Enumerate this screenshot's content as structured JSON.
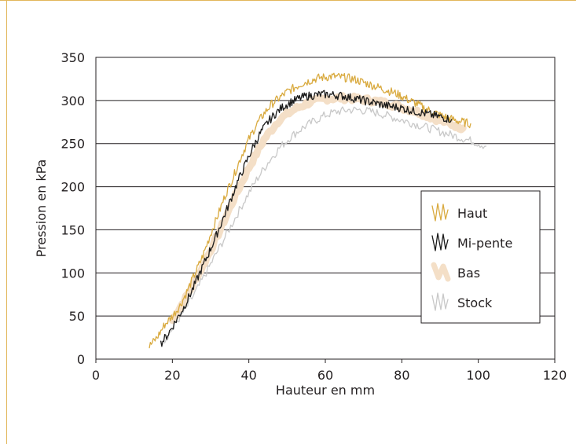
{
  "chart_data": {
    "type": "line",
    "title": "",
    "xlabel": "Hauteur en mm",
    "ylabel": "Pression en kPa",
    "xlim": [
      0,
      120
    ],
    "ylim": [
      0,
      350
    ],
    "xticks": [
      0,
      20,
      40,
      60,
      80,
      100,
      120
    ],
    "yticks": [
      0,
      50,
      100,
      150,
      200,
      250,
      300,
      350
    ],
    "grid": "horizontal",
    "legend_position": "right",
    "series": [
      {
        "name": "Haut",
        "color": "#d9aa3f",
        "x": [
          14,
          16,
          18,
          20,
          22,
          24,
          26,
          28,
          30,
          32,
          34,
          36,
          38,
          40,
          42,
          44,
          46,
          48,
          50,
          52,
          54,
          56,
          58,
          60,
          62,
          64,
          66,
          68,
          70,
          72,
          74,
          76,
          78,
          80,
          82,
          84,
          86,
          88,
          90,
          92,
          94,
          96,
          98
        ],
        "y": [
          15,
          25,
          40,
          50,
          62,
          80,
          100,
          120,
          145,
          168,
          192,
          212,
          235,
          255,
          272,
          285,
          296,
          303,
          310,
          315,
          320,
          323,
          326,
          327,
          328,
          327,
          326,
          324,
          321,
          318,
          315,
          312,
          309,
          305,
          300,
          296,
          291,
          287,
          283,
          280,
          277,
          275,
          273
        ]
      },
      {
        "name": "Mi-pente",
        "color": "#1a1a1a",
        "x": [
          17,
          19,
          21,
          23,
          25,
          27,
          29,
          31,
          33,
          35,
          37,
          39,
          41,
          43,
          45,
          47,
          49,
          51,
          53,
          55,
          57,
          59,
          61,
          63,
          65,
          67,
          69,
          71,
          73,
          75,
          77,
          79,
          81,
          83,
          85,
          87,
          89,
          91,
          93
        ],
        "y": [
          18,
          30,
          45,
          60,
          78,
          98,
          118,
          138,
          160,
          182,
          205,
          225,
          245,
          262,
          275,
          285,
          293,
          298,
          302,
          305,
          306,
          307,
          307,
          306,
          305,
          303,
          301,
          299,
          297,
          295,
          293,
          292,
          290,
          288,
          286,
          284,
          282,
          280,
          278
        ]
      },
      {
        "name": "Bas",
        "color": "#f4dfc7",
        "x": [
          20,
          24,
          28,
          32,
          36,
          40,
          44,
          48,
          52,
          56,
          60,
          64,
          68,
          72,
          76,
          80,
          84,
          88,
          92,
          96
        ],
        "y": [
          45,
          75,
          108,
          145,
          185,
          222,
          255,
          278,
          290,
          298,
          302,
          303,
          302,
          300,
          297,
          292,
          287,
          280,
          274,
          268
        ]
      },
      {
        "name": "Stock",
        "color": "#c8c8c8",
        "x": [
          18,
          21,
          24,
          27,
          30,
          33,
          36,
          39,
          42,
          45,
          48,
          51,
          54,
          57,
          60,
          63,
          66,
          69,
          72,
          75,
          78,
          81,
          84,
          87,
          90,
          93,
          96,
          99,
          102
        ],
        "y": [
          22,
          42,
          62,
          85,
          110,
          135,
          160,
          185,
          208,
          228,
          245,
          258,
          268,
          276,
          283,
          287,
          289,
          289,
          287,
          284,
          280,
          276,
          272,
          268,
          264,
          260,
          256,
          252,
          247
        ]
      }
    ]
  }
}
